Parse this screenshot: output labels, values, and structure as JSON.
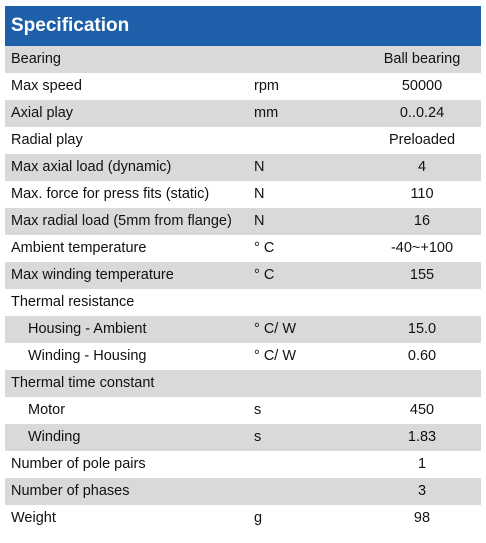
{
  "title": "Specification",
  "rows": [
    {
      "param": "Bearing",
      "unit": "",
      "value": "Ball bearing"
    },
    {
      "param": "Max speed",
      "unit": "rpm",
      "value": "50000"
    },
    {
      "param": "Axial play",
      "unit": "mm",
      "value": "0..0.24"
    },
    {
      "param": "Radial play",
      "unit": "",
      "value": "Preloaded"
    },
    {
      "param": "Max axial load (dynamic)",
      "unit": "N",
      "value": "4"
    },
    {
      "param": "Max. force for press fits (static)",
      "unit": "N",
      "value": "110"
    },
    {
      "param": "Max radial load (5mm from flange)",
      "unit": "N",
      "value": "16"
    },
    {
      "param": "Ambient temperature",
      "unit": "° C",
      "value": "-40~+100"
    },
    {
      "param": "Max winding temperature",
      "unit": "° C",
      "value": "155"
    },
    {
      "param": "Thermal resistance",
      "unit": "",
      "value": ""
    },
    {
      "param": "Housing - Ambient",
      "unit": "° C/ W",
      "value": "15.0"
    },
    {
      "param": "Winding - Housing",
      "unit": "° C/ W",
      "value": "0.60"
    },
    {
      "param": "Thermal time constant",
      "unit": "",
      "value": ""
    },
    {
      "param": "Motor",
      "unit": "s",
      "value": "450"
    },
    {
      "param": "Winding",
      "unit": "s",
      "value": "1.83"
    },
    {
      "param": "Number of pole pairs",
      "unit": "",
      "value": "1"
    },
    {
      "param": "Number of phases",
      "unit": "",
      "value": "3"
    },
    {
      "param": "Weight",
      "unit": "g",
      "value": "98"
    }
  ]
}
